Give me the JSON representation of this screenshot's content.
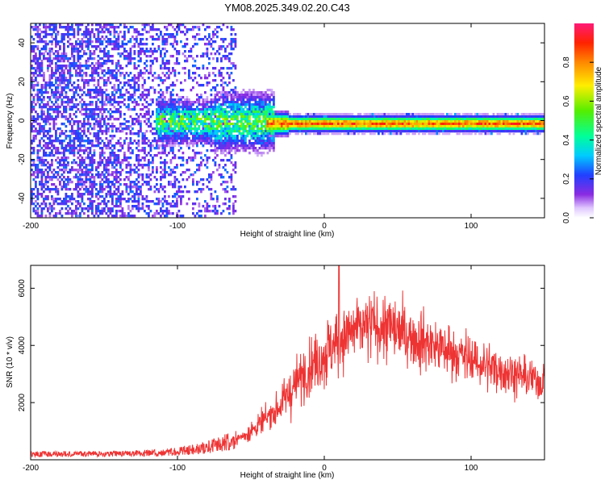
{
  "title": "YM08.2025.349.02.20.C43",
  "chart_data": [
    {
      "type": "heatmap",
      "name": "spectrogram",
      "xlabel": "Height of straight line (km)",
      "ylabel": "Frequency (Hz)",
      "xlim": [
        -200,
        150
      ],
      "ylim": [
        -50,
        50
      ],
      "xticks": [
        -200,
        -100,
        0,
        100
      ],
      "yticks": [
        -40,
        -20,
        0,
        20,
        40
      ],
      "colorbar": {
        "label": "Normalized spectral amplitude",
        "range": [
          0,
          1
        ],
        "ticks": [
          0.0,
          0.2,
          0.4,
          0.6,
          0.8
        ]
      },
      "description_bands": [
        {
          "x_range": [
            -200,
            -75
          ],
          "pattern": "broadband noise",
          "amplitude": [
            0.05,
            0.3
          ]
        },
        {
          "x_range": [
            -110,
            -75
          ],
          "pattern": "cluster near 0 Hz",
          "amplitude": [
            0.3,
            0.55
          ]
        },
        {
          "x_range": [
            -75,
            -35
          ],
          "pattern": "widening signal around 0 Hz",
          "amplitude": [
            0.3,
            0.7
          ]
        },
        {
          "x_range": [
            -35,
            150
          ],
          "pattern": "narrow line at about -1 Hz",
          "amplitude": [
            0.7,
            0.95
          ]
        }
      ]
    },
    {
      "type": "line",
      "name": "snr",
      "xlabel": "Height of straight line (km)",
      "ylabel": "SNR (10 * v/v)",
      "xlim": [
        -200,
        150
      ],
      "ylim": [
        0,
        6800
      ],
      "xticks": [
        -200,
        -100,
        0,
        100
      ],
      "yticks": [
        2000,
        4000,
        6000
      ],
      "color": "#ee3333",
      "envelope": [
        {
          "x": -200,
          "y": 200
        },
        {
          "x": -150,
          "y": 200
        },
        {
          "x": -110,
          "y": 250
        },
        {
          "x": -90,
          "y": 350
        },
        {
          "x": -75,
          "y": 500
        },
        {
          "x": -60,
          "y": 700
        },
        {
          "x": -50,
          "y": 1000
        },
        {
          "x": -40,
          "y": 1400
        },
        {
          "x": -30,
          "y": 1900
        },
        {
          "x": -20,
          "y": 2600
        },
        {
          "x": -10,
          "y": 3300
        },
        {
          "x": 0,
          "y": 3700
        },
        {
          "x": 10,
          "y": 4200
        },
        {
          "x": 20,
          "y": 4500
        },
        {
          "x": 35,
          "y": 4700
        },
        {
          "x": 50,
          "y": 4500
        },
        {
          "x": 70,
          "y": 4100
        },
        {
          "x": 90,
          "y": 3700
        },
        {
          "x": 110,
          "y": 3300
        },
        {
          "x": 130,
          "y": 3000
        },
        {
          "x": 150,
          "y": 2700
        }
      ],
      "spike": {
        "x": 10,
        "y": 6800
      }
    }
  ]
}
